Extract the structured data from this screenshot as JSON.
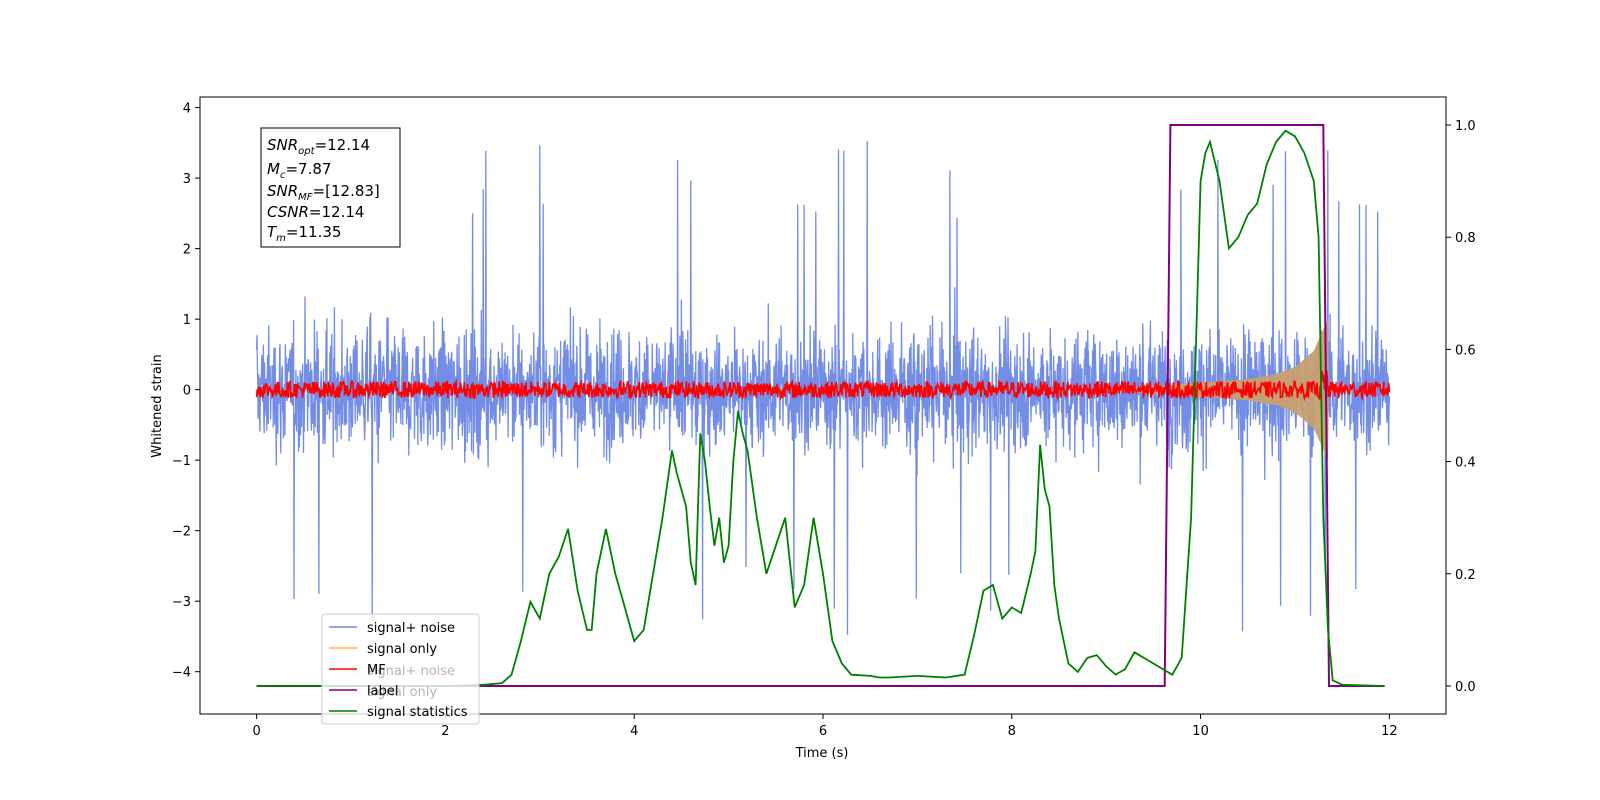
{
  "chart_data": {
    "type": "line",
    "xlabel": "Time (s)",
    "ylabel": "Whitened strain",
    "xlim": [
      -0.6,
      12.6
    ],
    "ylim_left": [
      -4.6,
      4.15
    ],
    "ylim_right": [
      -0.05,
      1.05
    ],
    "x_ticks": [
      "0",
      "2",
      "4",
      "6",
      "8",
      "10",
      "12"
    ],
    "y_ticks_left": [
      "4",
      "3",
      "2",
      "1",
      "0",
      "−1",
      "−2",
      "−3",
      "−4"
    ],
    "y_ticks_right": [
      "0.0",
      "0.2",
      "0.4",
      "0.6",
      "0.8",
      "1.0"
    ],
    "info_box": {
      "snr_opt_main": "SNR",
      "snr_opt_sub": "opt",
      "snr_opt_val": "=12.14",
      "mc_main": "M",
      "mc_sub": "c",
      "mc_val": "=7.87",
      "snr_mf_main": "SNR",
      "snr_mf_sub": "MF",
      "snr_mf_val": "=[12.83]",
      "csnr_main": "CSNR",
      "csnr_val": "=12.14",
      "tm_main": "T",
      "tm_sub": "m",
      "tm_val": "=11.35"
    },
    "legend": [
      {
        "label": "signal+ noise",
        "color": "#6b87e6"
      },
      {
        "label": "signal only",
        "color": "#ffb347"
      },
      {
        "label": "MF",
        "color": "#ff0000"
      },
      {
        "label": "label",
        "color": "#800080"
      },
      {
        "label": "signal statistics",
        "color": "#008000"
      }
    ],
    "legend_ghost": [
      "signal+ noise",
      "signal only"
    ],
    "series": [
      {
        "name": "signal+ noise",
        "axis": "left",
        "color": "#6b87e6",
        "x_range": [
          0,
          12
        ],
        "band": [
          -2.0,
          2.0
        ],
        "extremes": [
          -4.2,
          3.75
        ]
      },
      {
        "name": "signal only",
        "axis": "left",
        "color": "#c8a070",
        "envelope": {
          "x": [
            9.0,
            9.5,
            10.0,
            10.5,
            10.8,
            11.0,
            11.2,
            11.35,
            11.36
          ],
          "amp": [
            0.02,
            0.05,
            0.1,
            0.15,
            0.22,
            0.32,
            0.55,
            1.0,
            0.0
          ]
        }
      },
      {
        "name": "MF",
        "axis": "left",
        "color": "#ff0000",
        "x_range": [
          0,
          12
        ],
        "band": [
          -0.12,
          0.12
        ]
      },
      {
        "name": "label",
        "axis": "right",
        "color": "#800080",
        "x": [
          0,
          9.62,
          9.68,
          11.3,
          11.36,
          11.95
        ],
        "y": [
          0,
          0,
          1,
          1,
          0,
          0
        ]
      },
      {
        "name": "signal statistics",
        "axis": "right",
        "color": "#008000",
        "x": [
          0,
          0.3,
          0.5,
          1.0,
          1.5,
          2.0,
          2.4,
          2.6,
          2.7,
          2.8,
          2.9,
          3.0,
          3.1,
          3.2,
          3.3,
          3.4,
          3.5,
          3.55,
          3.6,
          3.7,
          3.8,
          3.9,
          4.0,
          4.1,
          4.2,
          4.3,
          4.4,
          4.45,
          4.5,
          4.55,
          4.6,
          4.65,
          4.7,
          4.75,
          4.8,
          4.85,
          4.9,
          4.95,
          5.0,
          5.05,
          5.1,
          5.15,
          5.2,
          5.3,
          5.4,
          5.5,
          5.6,
          5.7,
          5.8,
          5.9,
          6.0,
          6.1,
          6.2,
          6.3,
          6.5,
          6.6,
          6.7,
          7.0,
          7.3,
          7.5,
          7.6,
          7.7,
          7.8,
          7.9,
          8.0,
          8.1,
          8.2,
          8.25,
          8.3,
          8.35,
          8.4,
          8.45,
          8.5,
          8.6,
          8.7,
          8.8,
          8.9,
          9.0,
          9.1,
          9.2,
          9.3,
          9.4,
          9.5,
          9.6,
          9.7,
          9.8,
          9.9,
          10.0,
          10.05,
          10.1,
          10.2,
          10.3,
          10.4,
          10.5,
          10.6,
          10.7,
          10.8,
          10.9,
          11.0,
          11.1,
          11.2,
          11.25,
          11.3,
          11.35,
          11.4,
          11.5,
          11.95
        ],
        "y": [
          0,
          0,
          0,
          0,
          0,
          0,
          0.002,
          0.005,
          0.02,
          0.08,
          0.15,
          0.12,
          0.2,
          0.23,
          0.28,
          0.17,
          0.1,
          0.1,
          0.2,
          0.28,
          0.2,
          0.14,
          0.08,
          0.1,
          0.2,
          0.3,
          0.42,
          0.38,
          0.35,
          0.32,
          0.22,
          0.18,
          0.45,
          0.4,
          0.32,
          0.25,
          0.3,
          0.22,
          0.25,
          0.4,
          0.49,
          0.45,
          0.42,
          0.3,
          0.2,
          0.25,
          0.3,
          0.14,
          0.18,
          0.3,
          0.2,
          0.08,
          0.04,
          0.02,
          0.018,
          0.015,
          0.015,
          0.018,
          0.015,
          0.02,
          0.09,
          0.17,
          0.18,
          0.12,
          0.14,
          0.13,
          0.2,
          0.24,
          0.43,
          0.35,
          0.32,
          0.18,
          0.12,
          0.04,
          0.025,
          0.05,
          0.055,
          0.035,
          0.02,
          0.03,
          0.06,
          0.05,
          0.04,
          0.03,
          0.02,
          0.05,
          0.3,
          0.9,
          0.95,
          0.97,
          0.9,
          0.78,
          0.8,
          0.84,
          0.86,
          0.93,
          0.97,
          0.99,
          0.98,
          0.95,
          0.9,
          0.8,
          0.3,
          0.1,
          0.01,
          0.002,
          0.0
        ]
      }
    ]
  }
}
